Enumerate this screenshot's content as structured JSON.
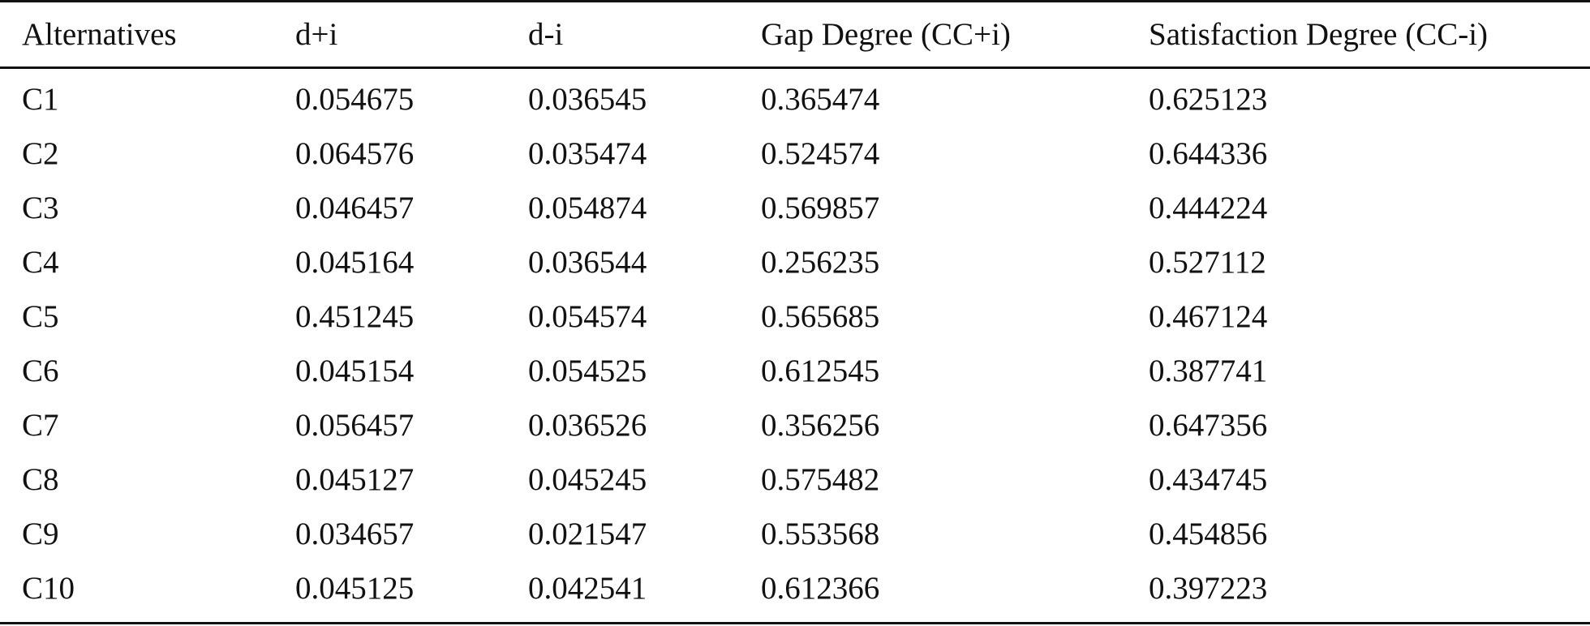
{
  "table": {
    "headers": [
      "Alternatives",
      "d+i",
      "d-i",
      "Gap Degree (CC+i)",
      "Satisfaction Degree (CC-i)"
    ],
    "rows": [
      [
        "C1",
        "0.054675",
        "0.036545",
        "0.365474",
        "0.625123"
      ],
      [
        "C2",
        "0.064576",
        "0.035474",
        "0.524574",
        "0.644336"
      ],
      [
        "C3",
        "0.046457",
        "0.054874",
        "0.569857",
        "0.444224"
      ],
      [
        "C4",
        "0.045164",
        "0.036544",
        "0.256235",
        "0.527112"
      ],
      [
        "C5",
        "0.451245",
        "0.054574",
        "0.565685",
        "0.467124"
      ],
      [
        "C6",
        "0.045154",
        "0.054525",
        "0.612545",
        "0.387741"
      ],
      [
        "C7",
        "0.056457",
        "0.036526",
        "0.356256",
        "0.647356"
      ],
      [
        "C8",
        "0.045127",
        "0.045245",
        "0.575482",
        "0.434745"
      ],
      [
        "C9",
        "0.034657",
        "0.021547",
        "0.553568",
        "0.454856"
      ],
      [
        "C10",
        "0.045125",
        "0.042541",
        "0.612366",
        "0.397223"
      ]
    ]
  }
}
